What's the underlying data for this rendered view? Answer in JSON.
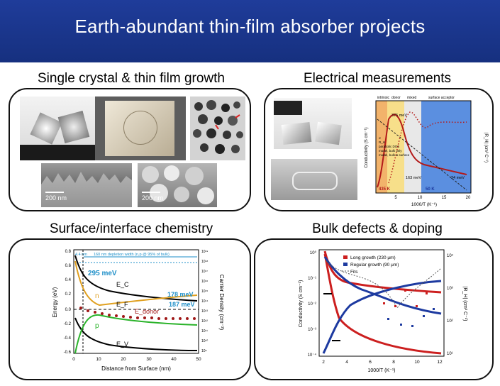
{
  "title": "Earth-abundant thin-film absorber projects",
  "sections": {
    "growth": {
      "title": "Single crystal & thin film growth",
      "scale_bars": [
        "200 nm",
        "200 nm"
      ]
    },
    "electrical": {
      "title": "Electrical measurements",
      "region_labels": [
        "intrinsic",
        "donor",
        "mixed",
        "surface acceptor"
      ],
      "energies": [
        "375 meV",
        "163 meV",
        "24 meV"
      ],
      "temps": [
        "435 K",
        "50 K"
      ],
      "legend": [
        "σ",
        "R_H",
        "parabolic DOS",
        "model, bulk only",
        "model, bulk & surface"
      ],
      "y_label": "Conductivity (S cm⁻¹)",
      "y2_label": "|R_H| (cm³ C⁻¹)",
      "x_label": "1000/T (K⁻¹)",
      "x_ticks": [
        "5",
        "10",
        "15",
        "20"
      ]
    },
    "surface": {
      "title": "Surface/interface chemistry",
      "annotations": [
        "4.4 nm",
        "160 nm depletion width (n,p @ 95% of bulk)",
        "295 meV",
        "178 meV",
        "187 meV"
      ],
      "bands": [
        "E_C",
        "E_F",
        "E_V",
        "E_donor",
        "n",
        "p"
      ],
      "y_label": "Energy (eV)",
      "y2_label": "Carrier Density (cm⁻³)",
      "x_label": "Distance from Surface (nm)",
      "x_ticks": [
        "0",
        "10",
        "20",
        "30",
        "40",
        "50"
      ],
      "y_ticks": [
        "0.8",
        "0.6",
        "0.4",
        "0.2",
        "0.0",
        "-0.2",
        "-0.4",
        "-0.6"
      ],
      "y2_ticks": [
        "10¹⁹",
        "10¹⁸",
        "10¹⁷",
        "10¹⁶",
        "10¹⁵",
        "10¹⁴",
        "10¹³",
        "10¹²",
        "10¹¹",
        "10¹⁰",
        "10⁹"
      ]
    },
    "bulk": {
      "title": "Bulk defects & doping",
      "legend": [
        "Long growth (230 μm)",
        "Regular growth (90 μm)",
        "Fits"
      ],
      "y_label": "Conductivity (S cm⁻¹)",
      "y2_label": "|R_H| (cm³ C⁻¹)",
      "x_label": "1000/T (K⁻¹)",
      "x_ticks": [
        "2",
        "4",
        "6",
        "8",
        "10",
        "12"
      ],
      "y_ticks": [
        "10⁰",
        "10⁻¹",
        "10⁻²",
        "10⁻³",
        "10⁻⁴"
      ],
      "y2_ticks": [
        "10⁴",
        "10³",
        "10²",
        "10¹"
      ]
    }
  },
  "colors": {
    "title_bar": "#1f3c9a",
    "red": "#cc1f1f",
    "blue": "#1d3aa0",
    "green": "#2bb32b",
    "orange": "#e0a020",
    "cyan": "#1e8fc8"
  }
}
